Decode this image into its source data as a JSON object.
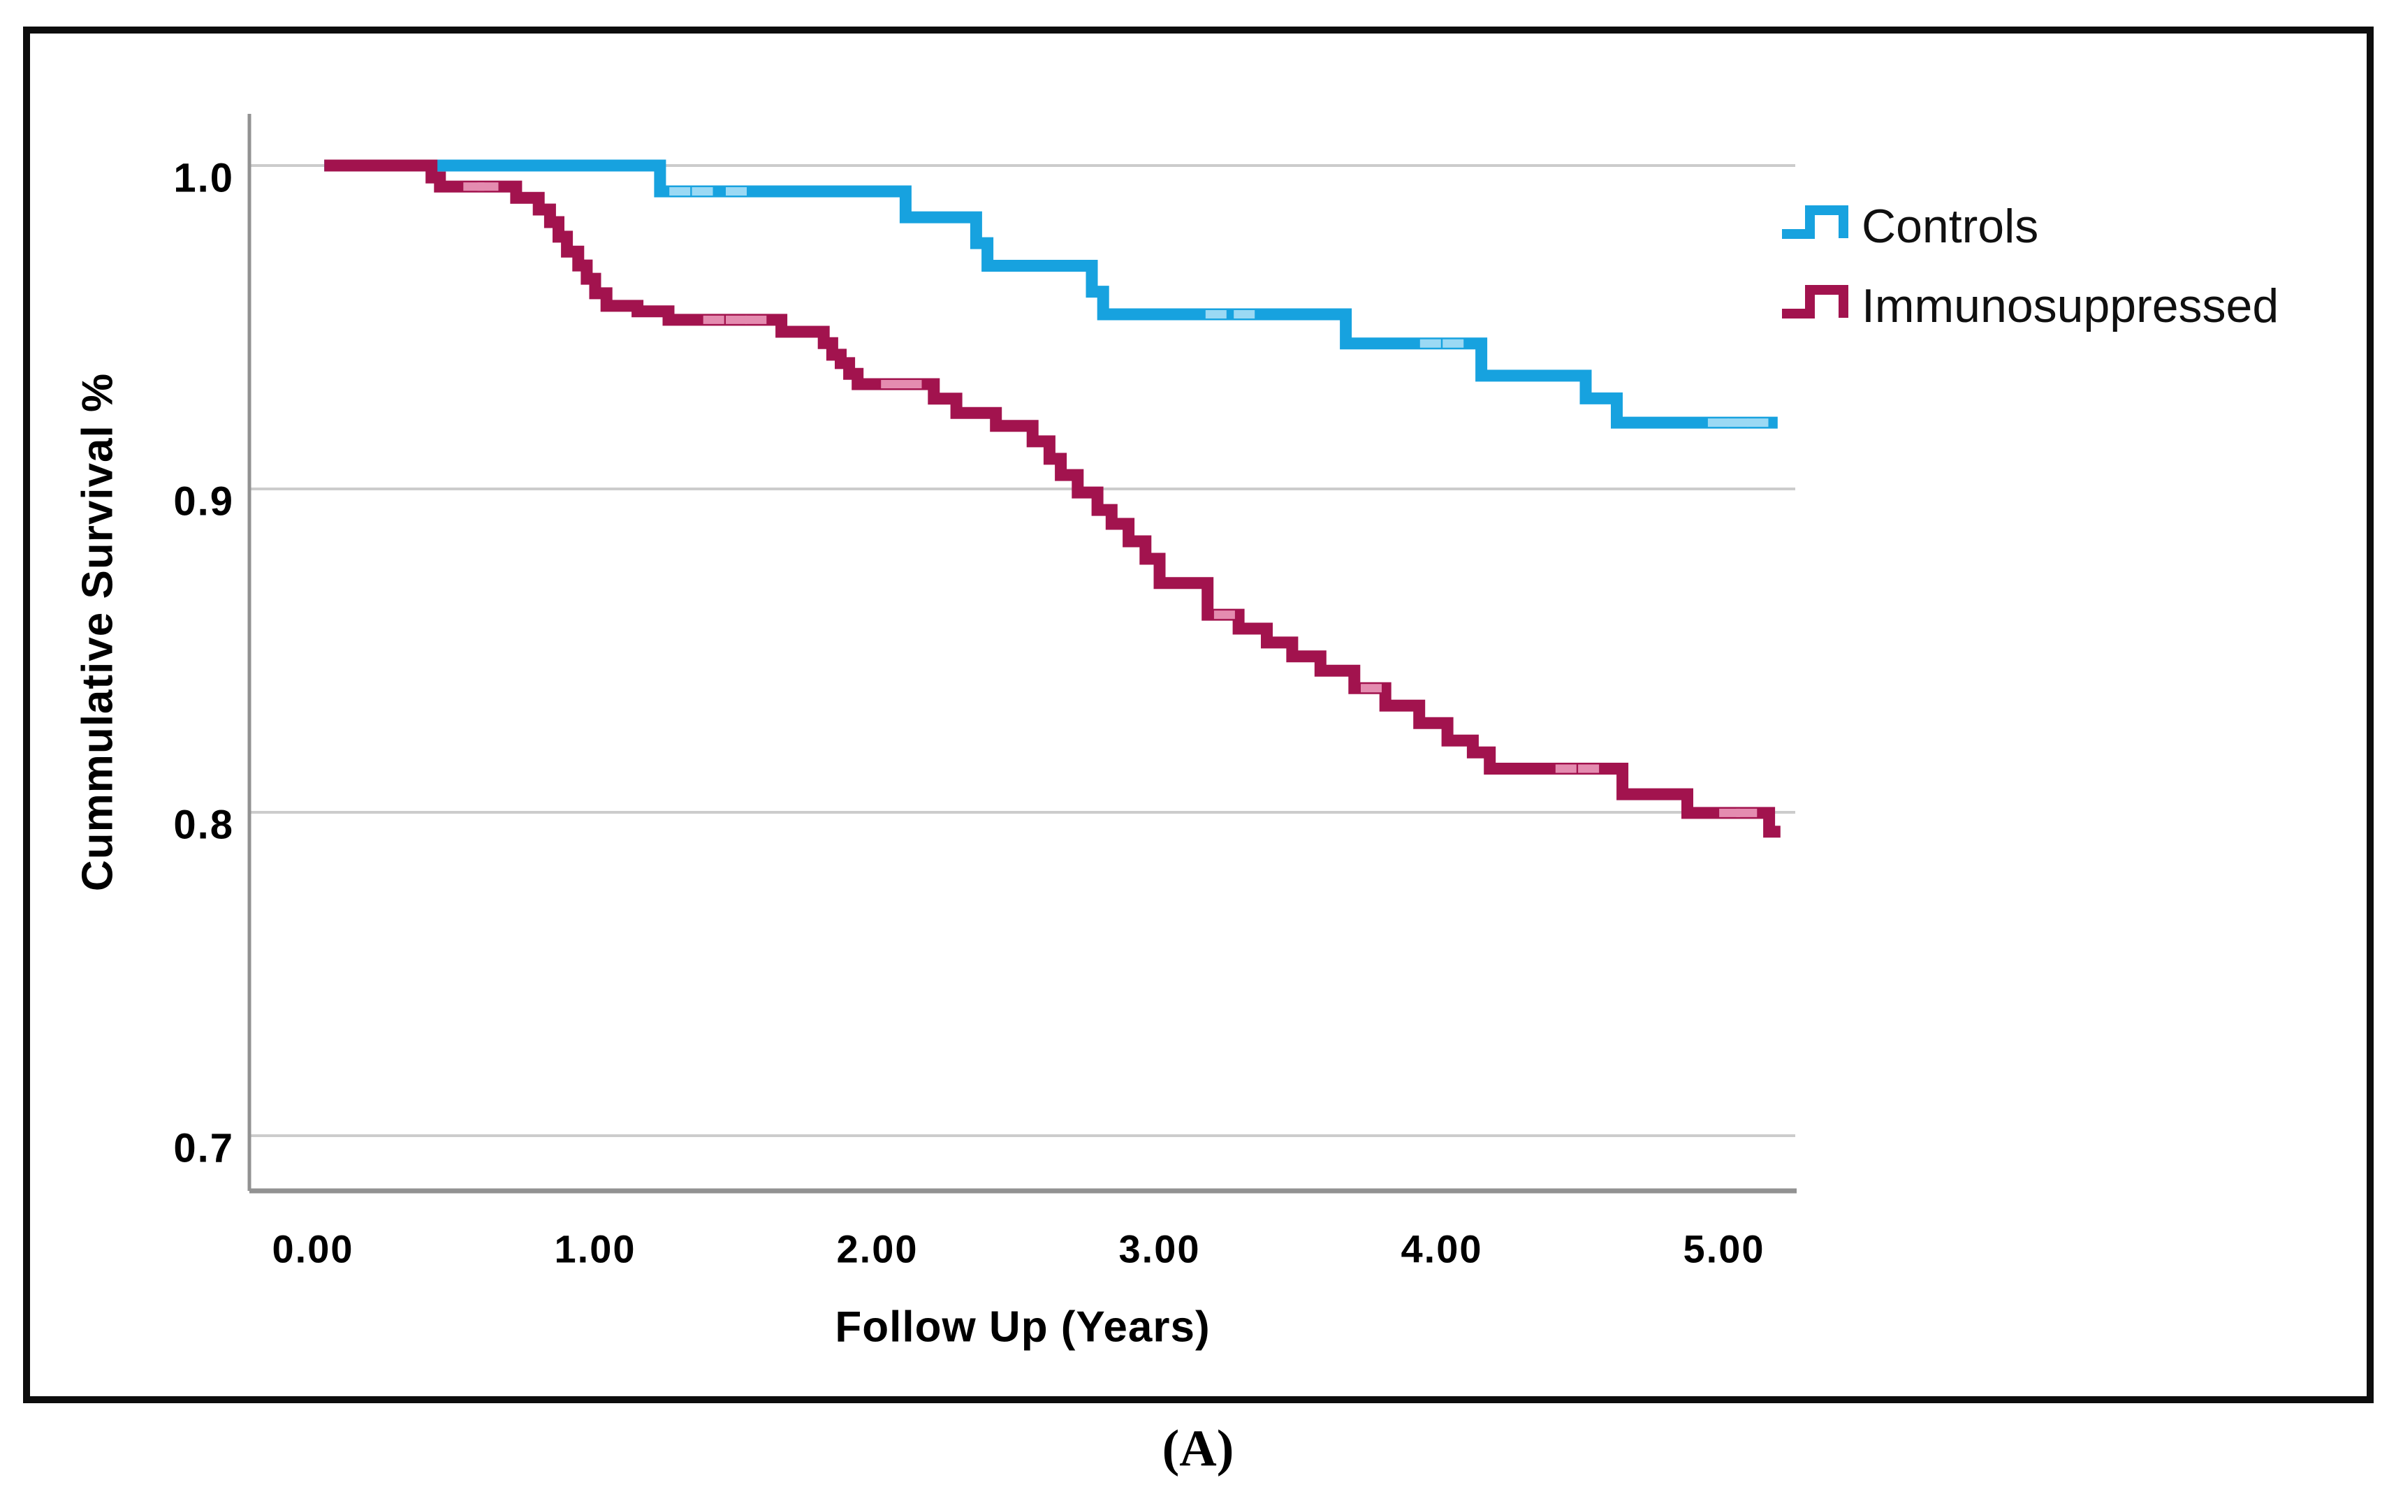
{
  "figure": {
    "caption": "(A)",
    "border_color": "#0d0d0d",
    "background": "#ffffff"
  },
  "chart_data": {
    "type": "line",
    "subtype": "kaplan_meier_step",
    "title": "",
    "xlabel": "Follow Up (Years)",
    "ylabel": "Cummulative Survival %",
    "xtick_labels": [
      "0.00",
      "1.00",
      "2.00",
      "3.00",
      "4.00",
      "5.00"
    ],
    "xtick_values": [
      0,
      1,
      2,
      3,
      4,
      5
    ],
    "ytick_labels": [
      "1.0",
      "0.9",
      "0.8",
      "0.7"
    ],
    "ytick_values": [
      1.0,
      0.9,
      0.8,
      0.7
    ],
    "xlim": [
      -0.23,
      5.25
    ],
    "ylim": [
      0.683,
      1.016
    ],
    "grid": "horizontal",
    "gridline_color": "#cccccc",
    "axis_line_color": "#929292",
    "legend": {
      "position": "top-right"
    },
    "series": [
      {
        "name": "Controls",
        "color": "#17a2df",
        "censor_color": "#9bd9f4",
        "steps": [
          [
            0.04,
            1.0
          ],
          [
            1.23,
            0.992
          ],
          [
            2.1,
            0.984
          ],
          [
            2.35,
            0.976
          ],
          [
            2.39,
            0.969
          ],
          [
            2.76,
            0.961
          ],
          [
            2.8,
            0.954
          ],
          [
            3.66,
            0.945
          ],
          [
            4.14,
            0.935
          ],
          [
            4.51,
            0.928
          ],
          [
            4.62,
            0.9205
          ],
          [
            5.19,
            0.9205
          ]
        ],
        "censor_times": [
          1.3,
          1.38,
          1.5,
          3.2,
          3.3,
          3.96,
          4.04,
          4.98,
          5.05,
          5.12
        ]
      },
      {
        "name": "Immunosuppressed",
        "color": "#a2134e",
        "censor_color": "#e48cb0",
        "steps": [
          [
            0.04,
            1.0
          ],
          [
            0.42,
            0.9963
          ],
          [
            0.45,
            0.9935
          ],
          [
            0.72,
            0.99
          ],
          [
            0.8,
            0.9864
          ],
          [
            0.84,
            0.9825
          ],
          [
            0.87,
            0.978
          ],
          [
            0.9,
            0.9734
          ],
          [
            0.94,
            0.9691
          ],
          [
            0.97,
            0.965
          ],
          [
            1.0,
            0.9605
          ],
          [
            1.04,
            0.9566
          ],
          [
            1.15,
            0.9549
          ],
          [
            1.26,
            0.9523
          ],
          [
            1.66,
            0.9486
          ],
          [
            1.81,
            0.9451
          ],
          [
            1.84,
            0.9415
          ],
          [
            1.87,
            0.9389
          ],
          [
            1.9,
            0.9356
          ],
          [
            1.93,
            0.9324
          ],
          [
            2.2,
            0.9279
          ],
          [
            2.28,
            0.9235
          ],
          [
            2.42,
            0.9195
          ],
          [
            2.55,
            0.9147
          ],
          [
            2.61,
            0.9093
          ],
          [
            2.65,
            0.9043
          ],
          [
            2.71,
            0.8989
          ],
          [
            2.78,
            0.8935
          ],
          [
            2.83,
            0.8892
          ],
          [
            2.89,
            0.8838
          ],
          [
            2.95,
            0.8784
          ],
          [
            3.0,
            0.8709
          ],
          [
            3.17,
            0.8611
          ],
          [
            3.28,
            0.8568
          ],
          [
            3.38,
            0.8525
          ],
          [
            3.47,
            0.8482
          ],
          [
            3.57,
            0.8438
          ],
          [
            3.69,
            0.8384
          ],
          [
            3.8,
            0.833
          ],
          [
            3.92,
            0.8276
          ],
          [
            4.02,
            0.8222
          ],
          [
            4.11,
            0.8185
          ],
          [
            4.17,
            0.8135
          ],
          [
            4.64,
            0.8056
          ],
          [
            4.87,
            0.7998
          ],
          [
            5.16,
            0.794
          ],
          [
            5.2,
            0.794
          ]
        ],
        "censor_times": [
          0.57,
          0.62,
          1.42,
          1.5,
          1.57,
          2.05,
          2.12,
          3.23,
          3.75,
          4.44,
          4.52,
          5.02,
          5.08
        ]
      }
    ]
  }
}
